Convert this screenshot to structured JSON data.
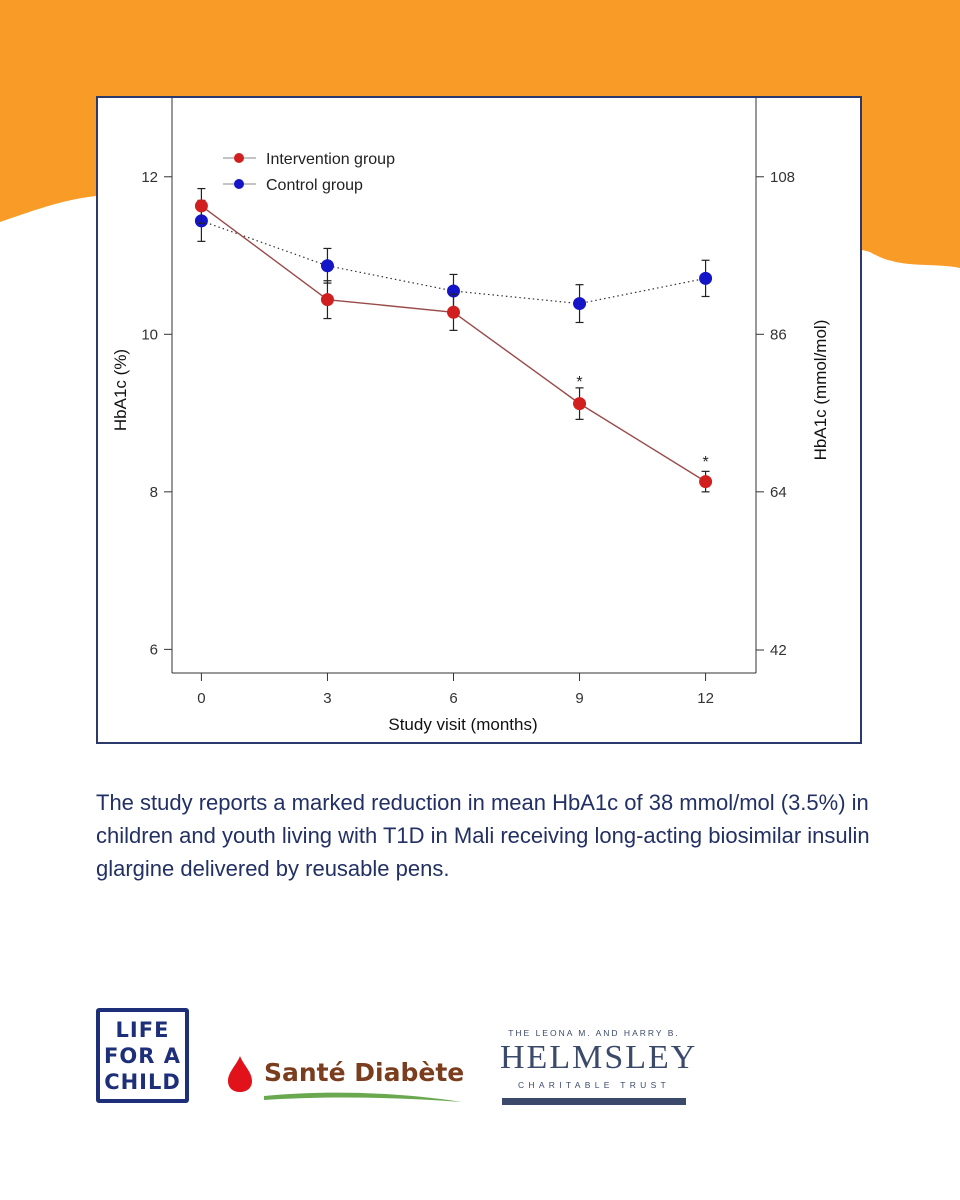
{
  "colors": {
    "band": "#f89c27",
    "frame_border": "#2b3a6b",
    "intervention": "#d11f1f",
    "control": "#1515c8",
    "caption": "#233064",
    "lfac_blue": "#1e2f7a",
    "sante_brown": "#7a3d1e",
    "sante_drop": "#e1121a",
    "sante_swoosh": "#6aa84f",
    "helmsley": "#3b4a6b"
  },
  "chart_data": {
    "type": "line",
    "x": [
      0,
      3,
      6,
      9,
      12
    ],
    "xticks": [
      "0",
      "3",
      "6",
      "9",
      "12"
    ],
    "xlabel": "Study visit (months)",
    "ylabel": "HbA1c (%)",
    "ylabel_right": "HbA1c (mmol/mol)",
    "ylim": [
      5.7,
      13.0
    ],
    "yticks": [
      6,
      8,
      10,
      12
    ],
    "yticks_right": [
      {
        "value": 5.992,
        "label": "42"
      },
      {
        "value": 8.0,
        "label": "64"
      },
      {
        "value": 10.0,
        "label": "86"
      },
      {
        "value": 12.0,
        "label": "108"
      }
    ],
    "series": [
      {
        "name": "Intervention group",
        "color": "#d11f1f",
        "line": "solid",
        "values": [
          11.63,
          10.44,
          10.28,
          9.12,
          8.13
        ],
        "error": [
          0.22,
          0.24,
          0.23,
          0.2,
          0.13
        ]
      },
      {
        "name": "Control group",
        "color": "#1515c8",
        "line": "dotted",
        "values": [
          11.44,
          10.87,
          10.55,
          10.39,
          10.71
        ],
        "error": [
          0.26,
          0.22,
          0.21,
          0.24,
          0.23
        ]
      }
    ],
    "annotations": [
      {
        "x": 9,
        "y": 9.43,
        "text": "*"
      },
      {
        "x": 12,
        "y": 8.42,
        "text": "*"
      }
    ],
    "legend": "top-left",
    "grid": false
  },
  "caption": "The study reports a marked reduction in mean HbA1c of 38 mmol/mol (3.5%) in children and youth living with T1D in Mali receiving long-acting biosimilar insulin glargine delivered by reusable pens.",
  "logos": {
    "life_for_a_child": [
      "LIFE",
      "FOR A",
      "CHILD"
    ],
    "sante_diabete": "Santé Diabète",
    "helmsley": {
      "top": "THE LEONA M. AND HARRY B.",
      "name": "HELMSLEY",
      "sub": "CHARITABLE TRUST"
    }
  }
}
